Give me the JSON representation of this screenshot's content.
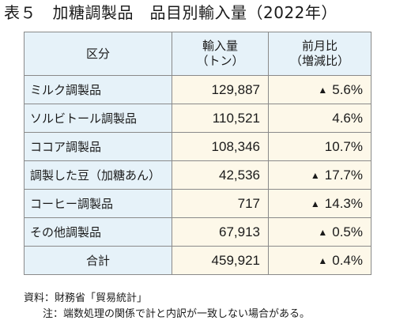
{
  "title": "表５　加糖調製品　品目別輸入量（2022年）",
  "table": {
    "headers": {
      "category": "区分",
      "volume_line1": "輸入量",
      "volume_line2": "（トン）",
      "change_line1": "前月比",
      "change_line2": "（増減比）"
    },
    "decrease_mark": "▲",
    "rows": [
      {
        "name": "ミルク調製品",
        "volume": "129,887",
        "mark": "▲",
        "change": "5.6%"
      },
      {
        "name": "ソルビトール調製品",
        "volume": "110,521",
        "mark": "",
        "change": "4.6%"
      },
      {
        "name": "ココア調製品",
        "volume": "108,346",
        "mark": "",
        "change": "10.7%"
      },
      {
        "name": "調製した豆（加糖あん）",
        "volume": "42,536",
        "mark": "▲",
        "change": "17.7%"
      },
      {
        "name": "コーヒー調製品",
        "volume": "717",
        "mark": "▲",
        "change": "14.3%"
      },
      {
        "name": "その他調製品",
        "volume": "67,913",
        "mark": "▲",
        "change": "0.5%"
      }
    ],
    "total": {
      "name": "合計",
      "volume": "459,921",
      "mark": "▲",
      "change": "0.4%"
    }
  },
  "notes": {
    "source": "資料：財務省「貿易統計」",
    "note": "注：端数処理の関係で計と内訳が一致しない場合がある。"
  }
}
